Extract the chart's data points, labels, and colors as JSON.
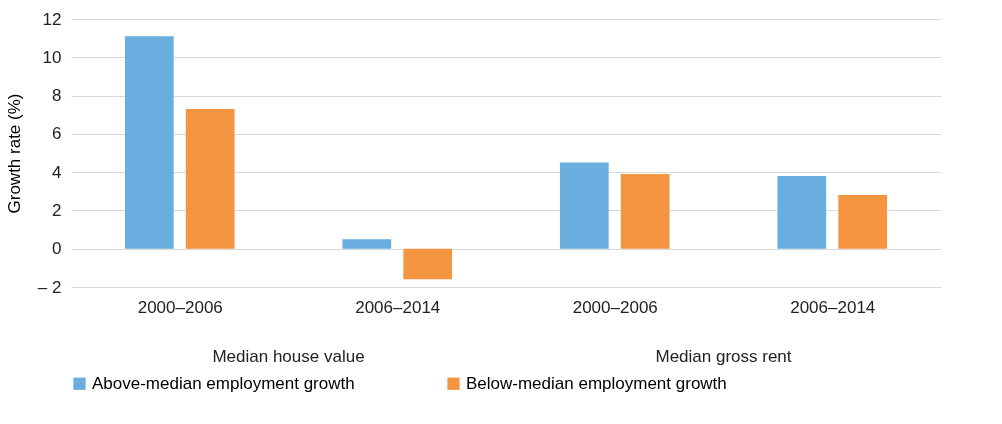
{
  "chart_data": {
    "type": "bar",
    "ylabel": "Growth rate (%)",
    "categories": [
      "2000–2006",
      "2006–2014",
      "2000–2006",
      "2006–2014"
    ],
    "series": [
      {
        "name": "Above-median employment growth",
        "color": "#6aaddf",
        "values": [
          11.1,
          0.5,
          4.5,
          3.8
        ]
      },
      {
        "name": "Below-median employment growth",
        "color": "#f39541",
        "values": [
          7.3,
          -1.6,
          3.9,
          2.8
        ]
      }
    ],
    "ylim": [
      -2,
      12
    ],
    "yticks": [
      {
        "value": -2,
        "label": "– 2"
      },
      0,
      2,
      4,
      6,
      8,
      10,
      12
    ],
    "annotations": [
      "Median house value",
      "Median gross rent"
    ],
    "grid": "y",
    "legend": "bottom"
  }
}
